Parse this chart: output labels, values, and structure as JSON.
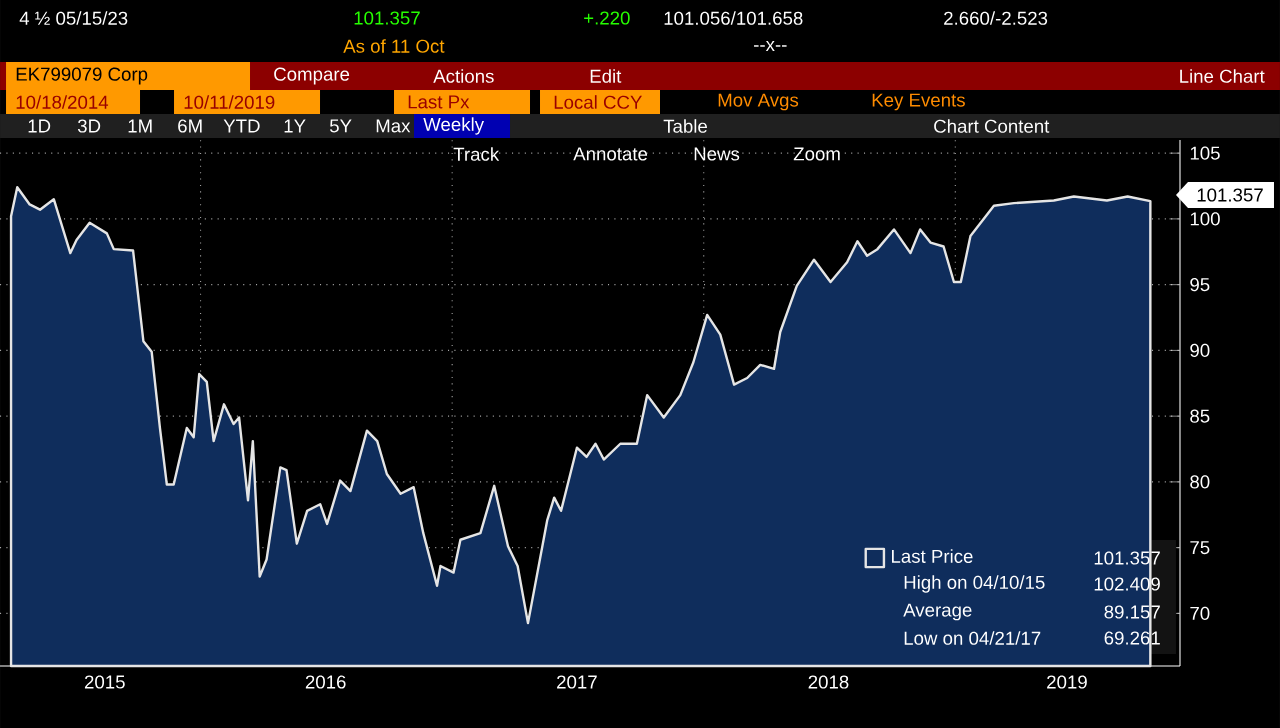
{
  "chart_data": {
    "type": "area",
    "title": "4 ½ 05/15/23",
    "subtitle": "As of 11 Oct",
    "x": [
      "2015-04-01",
      "2015-04-10",
      "2015-04-28",
      "2015-05-13",
      "2015-06-02",
      "2015-06-26",
      "2015-07-05",
      "2015-07-24",
      "2015-08-18",
      "2015-08-28",
      "2015-09-25",
      "2015-10-10",
      "2015-10-22",
      "2015-11-03",
      "2015-11-13",
      "2015-11-23",
      "2015-12-12",
      "2015-12-22",
      "2015-12-30",
      "2016-01-10",
      "2016-01-20",
      "2016-02-04",
      "2016-02-18",
      "2016-02-26",
      "2016-03-10",
      "2016-03-17",
      "2016-03-27",
      "2016-04-06",
      "2016-04-26",
      "2016-05-05",
      "2016-05-20",
      "2016-06-04",
      "2016-06-23",
      "2016-07-03",
      "2016-07-22",
      "2016-08-06",
      "2016-08-30",
      "2016-09-14",
      "2016-09-28",
      "2016-10-18",
      "2016-11-06",
      "2016-11-20",
      "2016-12-10",
      "2016-12-15",
      "2017-01-03",
      "2017-01-13",
      "2017-02-11",
      "2017-03-03",
      "2017-03-23",
      "2017-04-06",
      "2017-04-21",
      "2017-05-19",
      "2017-05-29",
      "2017-06-08",
      "2017-07-01",
      "2017-07-15",
      "2017-07-28",
      "2017-08-09",
      "2017-09-02",
      "2017-09-26",
      "2017-10-11",
      "2017-11-04",
      "2017-11-28",
      "2017-12-17",
      "2018-01-06",
      "2018-01-25",
      "2018-02-14",
      "2018-03-05",
      "2018-03-24",
      "2018-04-13",
      "2018-04-22",
      "2018-05-16",
      "2018-06-10",
      "2018-07-04",
      "2018-07-28",
      "2018-08-12",
      "2018-08-26",
      "2018-09-10",
      "2018-10-04",
      "2018-10-28",
      "2018-11-11",
      "2018-11-26",
      "2018-12-15",
      "2018-12-30",
      "2019-01-09",
      "2019-01-23",
      "2019-02-26",
      "2019-03-27",
      "2019-05-24",
      "2019-06-22",
      "2019-08-09",
      "2019-09-08",
      "2019-10-11"
    ],
    "series": [
      {
        "name": "Last Price",
        "color": "#0f2d5c",
        "values": [
          100.2,
          102.409,
          101.1,
          100.7,
          101.5,
          97.4,
          98.4,
          99.7,
          98.9,
          97.7,
          97.6,
          90.7,
          89.9,
          84.1,
          79.8,
          79.8,
          84.1,
          83.4,
          88.2,
          87.6,
          83.1,
          85.9,
          84.4,
          84.9,
          78.6,
          83.1,
          72.8,
          74.1,
          81.1,
          80.9,
          75.3,
          77.8,
          78.3,
          76.8,
          80.1,
          79.3,
          83.9,
          83.1,
          80.6,
          79.1,
          79.6,
          76.1,
          72.1,
          73.6,
          73.1,
          75.6,
          76.1,
          79.7,
          75.1,
          73.6,
          69.261,
          77.1,
          78.8,
          77.8,
          82.6,
          81.9,
          82.9,
          81.7,
          82.9,
          82.9,
          86.6,
          84.9,
          86.6,
          89.1,
          92.7,
          91.2,
          87.4,
          87.9,
          88.9,
          88.6,
          91.4,
          94.9,
          96.9,
          95.2,
          96.7,
          98.3,
          97.2,
          97.7,
          99.2,
          97.4,
          99.2,
          98.2,
          97.9,
          95.2,
          95.2,
          98.7,
          101.0,
          101.2,
          101.4,
          101.7,
          101.4,
          101.7,
          101.357
        ]
      }
    ],
    "xlim": [
      "2015-03-16",
      "2019-11-23"
    ],
    "xticks": [
      {
        "value": "2016-01-01",
        "label": null
      },
      {
        "value": "2017-01-01",
        "label": null
      },
      {
        "value": "2018-01-01",
        "label": null
      },
      {
        "value": "2019-01-01",
        "label": null
      },
      {
        "value": "2015-08-15",
        "label": "2015"
      },
      {
        "value": "2016-07-01",
        "label": "2016"
      },
      {
        "value": "2017-07-01",
        "label": "2017"
      },
      {
        "value": "2018-07-01",
        "label": "2018"
      },
      {
        "value": "2019-06-12",
        "label": "2019"
      }
    ],
    "ylim": [
      66,
      106
    ],
    "yticks": [
      70,
      75,
      80,
      85,
      90,
      95,
      100,
      105
    ],
    "grid": true,
    "legend": "bottom right",
    "annotations": [
      "101.357",
      "+.220",
      "101.056/101.658",
      "2.660/-2.523",
      "--x--",
      "EK799079 Corp",
      "Compare",
      "Actions",
      "Edit",
      "Line Chart",
      "10/18/2014",
      "10/11/2019",
      "Last Px",
      "Local CCY",
      "Mov Avgs",
      "Key Events",
      "1D",
      "3D",
      "1M",
      "6M",
      "YTD",
      "1Y",
      "5Y",
      "Max",
      "Weekly",
      "Table",
      "Chart Content",
      "Track",
      "Annotate",
      "News",
      "Zoom",
      "High on 04/10/15",
      "102.409",
      "Average",
      "89.157",
      "Low on 04/21/17",
      "69.261",
      "101.357",
      "101.357"
    ]
  }
}
